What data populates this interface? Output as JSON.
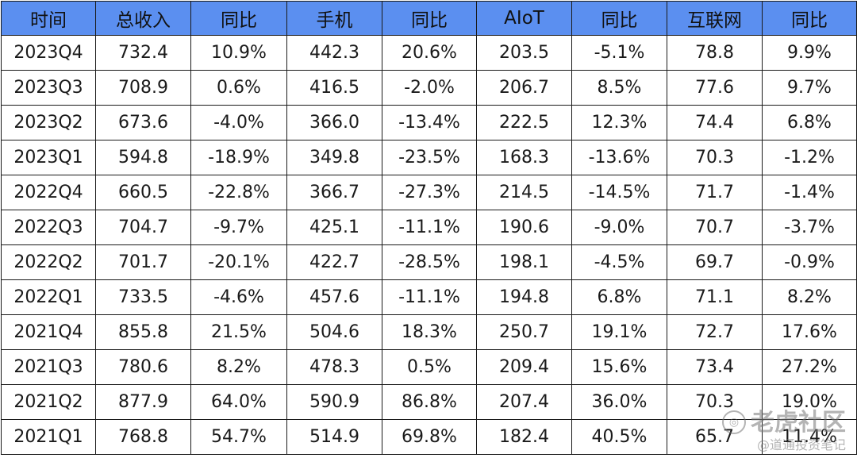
{
  "table": {
    "headers": [
      "时间",
      "总收入",
      "同比",
      "手机",
      "同比",
      "AIoT",
      "同比",
      "互联网",
      "同比"
    ],
    "rows": [
      [
        "2023Q4",
        "732.4",
        "10.9%",
        "442.3",
        "20.6%",
        "203.5",
        "-5.1%",
        "78.8",
        "9.9%"
      ],
      [
        "2023Q3",
        "708.9",
        "0.6%",
        "416.5",
        "-2.0%",
        "206.7",
        "8.5%",
        "77.6",
        "9.7%"
      ],
      [
        "2023Q2",
        "673.6",
        "-4.0%",
        "366.0",
        "-13.4%",
        "222.5",
        "12.3%",
        "74.4",
        "6.8%"
      ],
      [
        "2023Q1",
        "594.8",
        "-18.9%",
        "349.8",
        "-23.5%",
        "168.3",
        "-13.6%",
        "70.3",
        "-1.2%"
      ],
      [
        "2022Q4",
        "660.5",
        "-22.8%",
        "366.7",
        "-27.3%",
        "214.5",
        "-14.5%",
        "71.7",
        "-1.4%"
      ],
      [
        "2022Q3",
        "704.7",
        "-9.7%",
        "425.1",
        "-11.1%",
        "190.6",
        "-9.0%",
        "70.7",
        "-3.7%"
      ],
      [
        "2022Q2",
        "701.7",
        "-20.1%",
        "422.7",
        "-28.5%",
        "198.1",
        "-4.5%",
        "69.7",
        "-0.9%"
      ],
      [
        "2022Q1",
        "733.5",
        "-4.6%",
        "457.6",
        "-11.1%",
        "194.8",
        "6.8%",
        "71.1",
        "8.2%"
      ],
      [
        "2021Q4",
        "855.8",
        "21.5%",
        "504.6",
        "18.3%",
        "250.7",
        "19.1%",
        "72.7",
        "17.6%"
      ],
      [
        "2021Q3",
        "780.6",
        "8.2%",
        "478.3",
        "0.5%",
        "209.4",
        "15.6%",
        "73.4",
        "27.2%"
      ],
      [
        "2021Q2",
        "877.9",
        "64.0%",
        "590.9",
        "86.8%",
        "207.4",
        "36.0%",
        "70.3",
        "19.0%"
      ],
      [
        "2021Q1",
        "768.8",
        "54.7%",
        "514.9",
        "69.8%",
        "182.4",
        "40.5%",
        "65.7",
        "11.4%"
      ]
    ]
  },
  "watermark": {
    "brand": "老虎社区",
    "handle": "@道通投资笔记",
    "logo_icon": "tiger-logo-icon"
  },
  "colors": {
    "header_bg": "#5b8ff0",
    "border": "#1a1a1a"
  }
}
